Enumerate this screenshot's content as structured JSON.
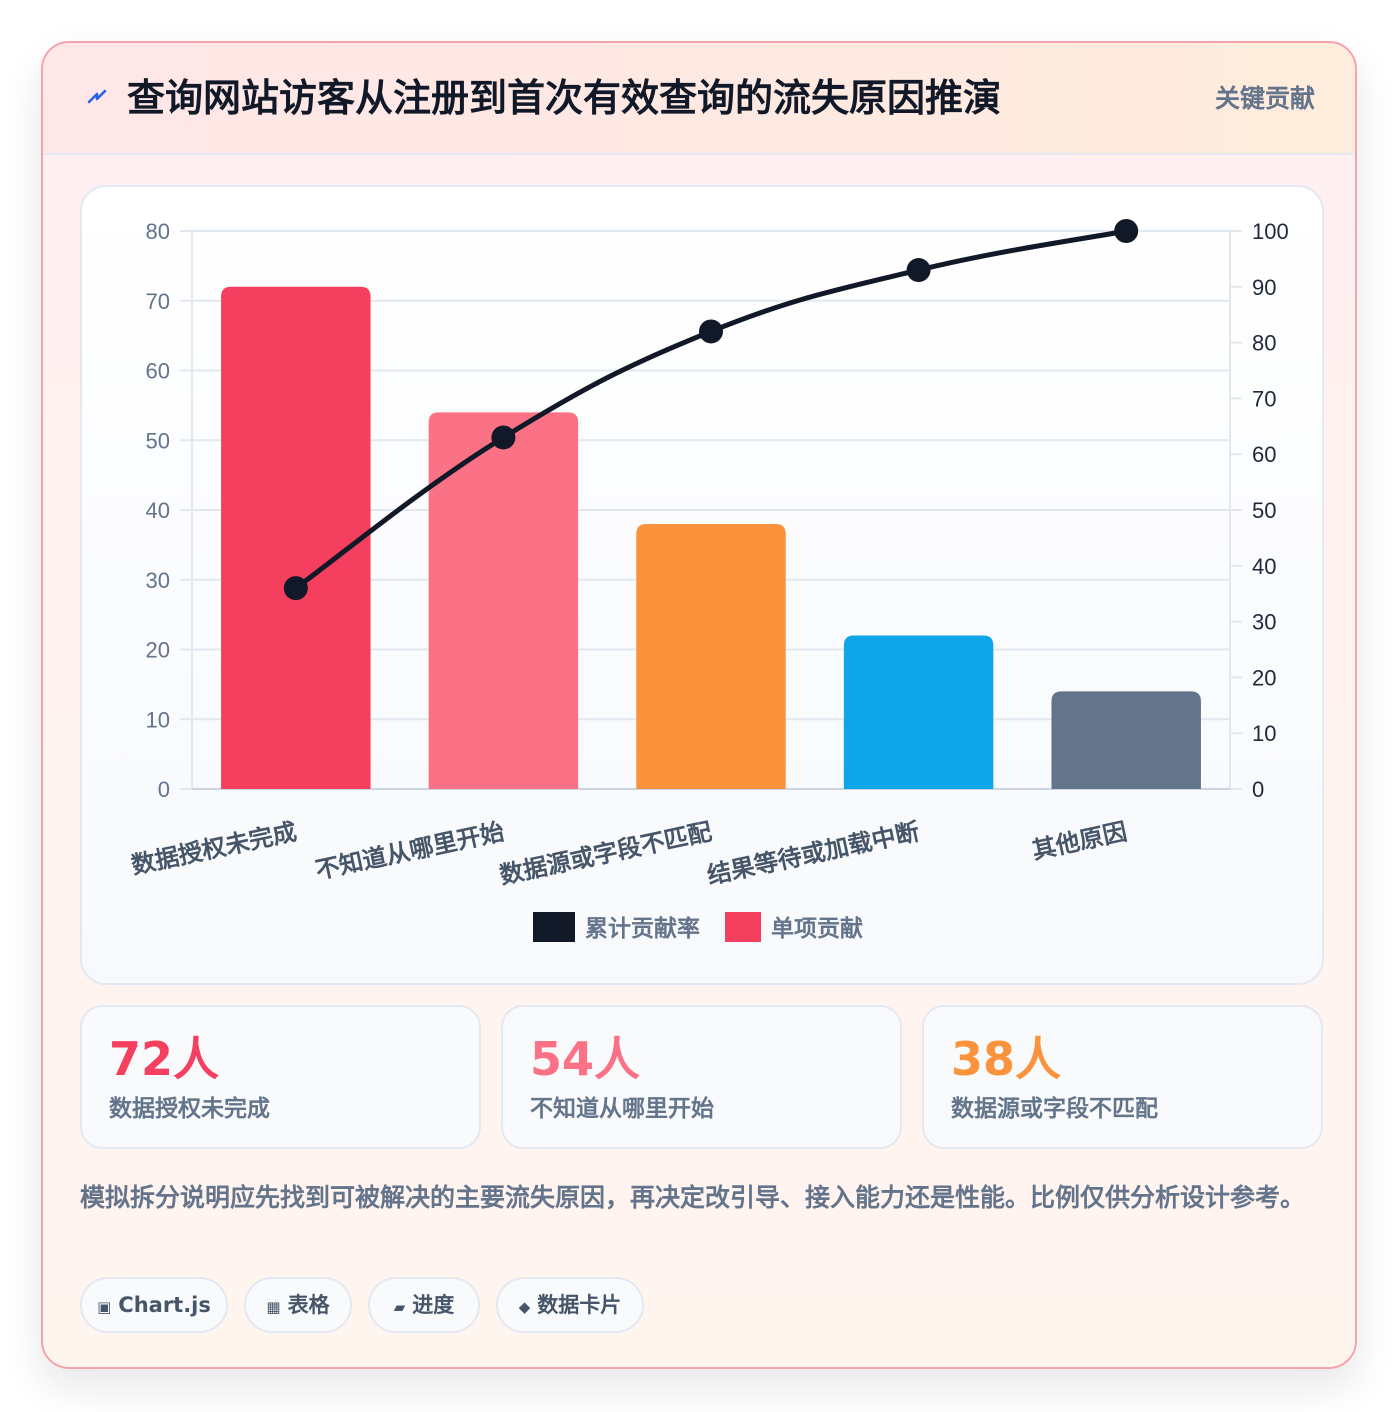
{
  "header": {
    "title": "查询网站访客从注册到首次有效查询的流失原因推演",
    "tag": "关键贡献"
  },
  "chart_data": {
    "type": "bar",
    "categories": [
      "数据授权未完成",
      "不知道从哪里开始",
      "数据源或字段不匹配",
      "结果等待或加载中断",
      "其他原因"
    ],
    "series": [
      {
        "name": "累计贡献率",
        "type": "line",
        "axis": "right",
        "values": [
          36,
          63,
          82,
          93,
          100
        ],
        "color": "#111827"
      },
      {
        "name": "单项贡献",
        "type": "bar",
        "axis": "left",
        "values": [
          72,
          54,
          38,
          22,
          14
        ],
        "colors": [
          "#f43f5e",
          "#fb7185",
          "#fb923c",
          "#0ea5e9",
          "#64748b"
        ]
      }
    ],
    "ylim": [
      0,
      80
    ],
    "y_ticks": [
      0,
      10,
      20,
      30,
      40,
      50,
      60,
      70,
      80
    ],
    "y2lim": [
      0,
      100
    ],
    "y2_ticks": [
      0,
      10,
      20,
      30,
      40,
      50,
      60,
      70,
      80,
      90,
      100
    ],
    "grid": true,
    "legend_position": "bottom"
  },
  "stats": [
    {
      "value": "72人",
      "label": "数据授权未完成",
      "color": "#f43f5e"
    },
    {
      "value": "54人",
      "label": "不知道从哪里开始",
      "color": "#fb7185"
    },
    {
      "value": "38人",
      "label": "数据源或字段不匹配",
      "color": "#fb923c"
    }
  ],
  "note": "模拟拆分说明应先找到可被解决的主要流失原因，再决定改引导、接入能力还是性能。比例仅供分析设计参考。",
  "chips": [
    {
      "icon": "▣",
      "label": "Chart.js"
    },
    {
      "icon": "▦",
      "label": "表格"
    },
    {
      "icon": "▰",
      "label": "进度"
    },
    {
      "icon": "◆",
      "label": "数据卡片"
    }
  ],
  "icons": {
    "header": "lightning-icon"
  }
}
